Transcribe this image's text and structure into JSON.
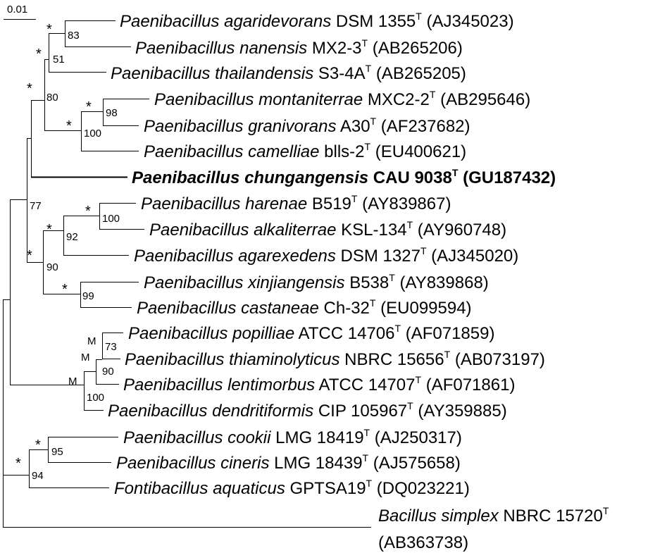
{
  "scale_bar": {
    "label": "0.01"
  },
  "taxa": [
    {
      "genus": "Paenibacillus",
      "epithet": "agaridevorans",
      "strain": "DSM 1355",
      "type_mark": "T",
      "accession": "(AJ345023)",
      "bold": false
    },
    {
      "genus": "Paenibacillus",
      "epithet": "nanensis",
      "strain": "MX2-3",
      "type_mark": "T",
      "accession": "(AB265206)",
      "bold": false
    },
    {
      "genus": "Paenibacillus",
      "epithet": "thailandensis",
      "strain": "S3-4A",
      "type_mark": "T",
      "accession": "(AB265205)",
      "bold": false
    },
    {
      "genus": "Paenibacillus",
      "epithet": "montaniterrae",
      "strain": "MXC2-2",
      "type_mark": "T",
      "accession": "(AB295646)",
      "bold": false
    },
    {
      "genus": "Paenibacillus",
      "epithet": "granivorans",
      "strain": "A30",
      "type_mark": "T",
      "accession": "(AF237682)",
      "bold": false
    },
    {
      "genus": "Paenibacillus",
      "epithet": "camelliae",
      "strain": "blls-2",
      "type_mark": "T",
      "accession": "(EU400621)",
      "bold": false
    },
    {
      "genus": "Paenibacillus",
      "epithet": "chungangensis",
      "strain": "CAU 9038",
      "type_mark": "T",
      "accession": "(GU187432)",
      "bold": true
    },
    {
      "genus": "Paenibacillus",
      "epithet": "harenae",
      "strain": "B519",
      "type_mark": "T",
      "accession": "(AY839867)",
      "bold": false
    },
    {
      "genus": "Paenibacillus",
      "epithet": "alkaliterrae",
      "strain": "KSL-134",
      "type_mark": "T",
      "accession": "(AY960748)",
      "bold": false
    },
    {
      "genus": "Paenibacillus",
      "epithet": "agarexedens",
      "strain": "DSM 1327",
      "type_mark": "T",
      "accession": "(AJ345020)",
      "bold": false
    },
    {
      "genus": "Paenibacillus",
      "epithet": "xinjiangensis",
      "strain": "B538",
      "type_mark": "T",
      "accession": "(AY839868)",
      "bold": false
    },
    {
      "genus": "Paenibacillus",
      "epithet": "castaneae",
      "strain": "Ch-32",
      "type_mark": "T",
      "accession": "(EU099594)",
      "bold": false
    },
    {
      "genus": "Paenibacillus",
      "epithet": "popilliae",
      "strain": "ATCC 14706",
      "type_mark": "T",
      "accession": "(AF071859)",
      "bold": false
    },
    {
      "genus": "Paenibacillus",
      "epithet": "thiaminolyticus",
      "strain": "NBRC 15656",
      "type_mark": "T",
      "accession": "(AB073197)",
      "bold": false
    },
    {
      "genus": "Paenibacillus",
      "epithet": "lentimorbus",
      "strain": "ATCC 14707",
      "type_mark": "T",
      "accession": "(AF071861)",
      "bold": false
    },
    {
      "genus": "Paenibacillus",
      "epithet": "dendritiformis",
      "strain": "CIP 105967",
      "type_mark": "T",
      "accession": "(AY359885)",
      "bold": false
    },
    {
      "genus": "Paenibacillus",
      "epithet": "cookii",
      "strain": "LMG 18419",
      "type_mark": "T",
      "accession": "(AJ250317)",
      "bold": false
    },
    {
      "genus": "Paenibacillus",
      "epithet": "cineris",
      "strain": "LMG 18439",
      "type_mark": "T",
      "accession": "(AJ575658)",
      "bold": false
    },
    {
      "genus": "Fontibacillus",
      "epithet": "aquaticus",
      "strain": "GPTSA19",
      "type_mark": "T",
      "accession": "(DQ023221)",
      "bold": false
    },
    {
      "genus": "Bacillus",
      "epithet": "simplex",
      "strain": "NBRC 15720",
      "type_mark": "T",
      "accession": "(AB363738)",
      "bold": false
    }
  ],
  "node_labels": {
    "agaridevorans_nanensis": {
      "mark": "*",
      "value": "83"
    },
    "nanensis_thailandensis": {
      "mark": "*",
      "value": "51"
    },
    "upper_group": {
      "mark": "*",
      "value": "80"
    },
    "montaniterrae_granivorans": {
      "mark": "*",
      "value": "98"
    },
    "camelliae_group": {
      "mark": "*",
      "value": "100"
    },
    "chungangensis_group": {
      "mark": "",
      "value": "77"
    },
    "harenae_alkaliterrae": {
      "mark": "*",
      "value": "100"
    },
    "agarexedens_group": {
      "mark": "*",
      "value": "92"
    },
    "harenae_xinjiang_group": {
      "mark": "*",
      "value": "90"
    },
    "xinjiangensis_castaneae": {
      "mark": "*",
      "value": "99"
    },
    "popilliae_thiaminolyticus": {
      "mark": "M",
      "value": "73"
    },
    "lentimorbus_group": {
      "mark": "M",
      "value": "90"
    },
    "dendritiformis_group": {
      "mark": "M",
      "value": "100"
    },
    "cookii_cineris": {
      "mark": "*",
      "value": "95"
    },
    "fontibacillus_group": {
      "mark": "*",
      "value": "94"
    }
  }
}
